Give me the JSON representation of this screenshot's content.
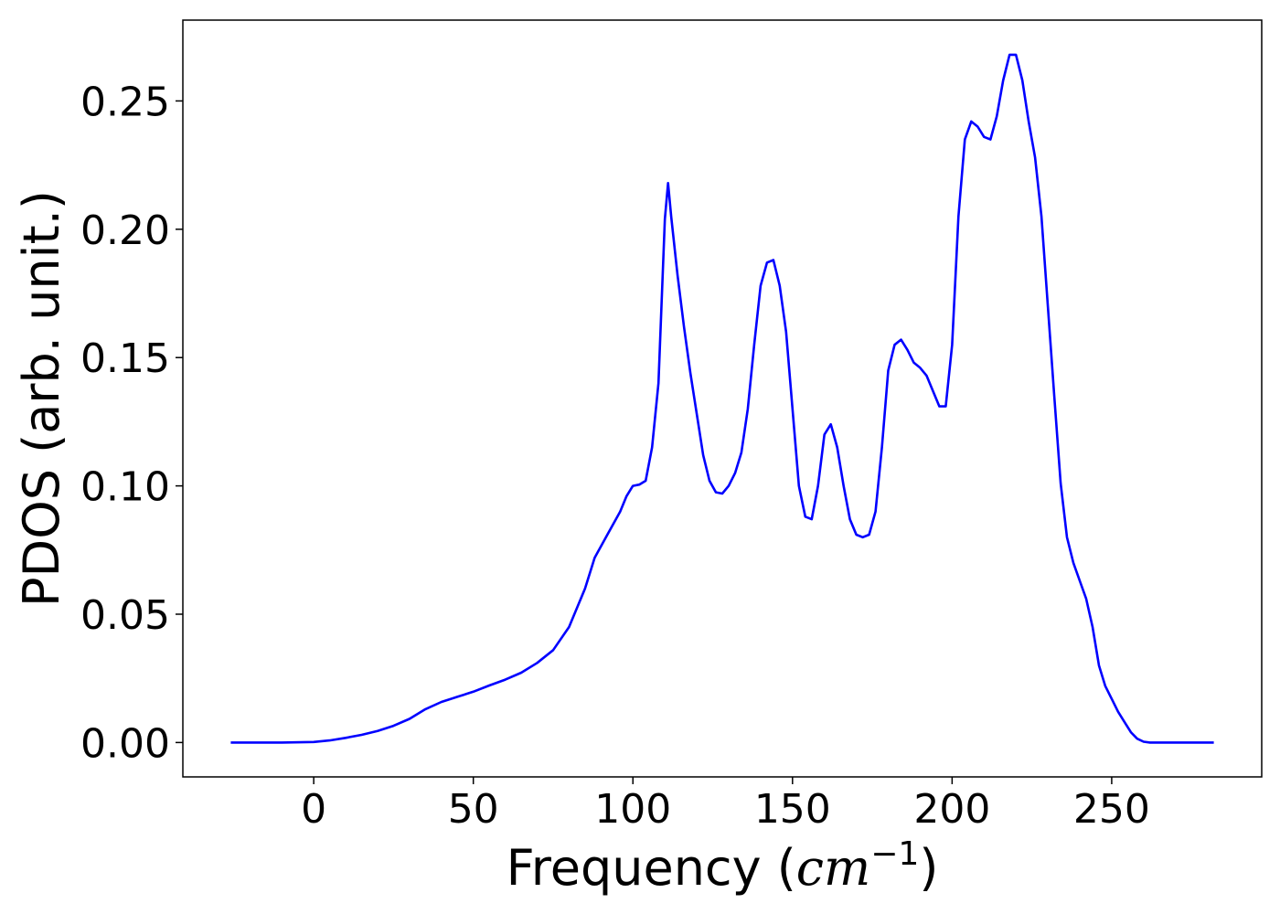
{
  "chart_data": {
    "type": "line",
    "title": "",
    "xlabel": "Frequency",
    "xlabel_unit_base": "cm",
    "xlabel_unit_exp": "−1",
    "ylabel": "PDOS (arb. unit.)",
    "xlim": [
      -41,
      297
    ],
    "ylim": [
      -0.0134,
      0.2815
    ],
    "xticks": [
      0,
      50,
      100,
      150,
      200,
      250
    ],
    "xtick_labels": [
      "0",
      "50",
      "100",
      "150",
      "200",
      "250"
    ],
    "yticks": [
      0.0,
      0.05,
      0.1,
      0.15,
      0.2,
      0.25
    ],
    "ytick_labels": [
      "0.00",
      "0.05",
      "0.10",
      "0.15",
      "0.20",
      "0.25"
    ],
    "grid": false,
    "series": [
      {
        "color": "#0000ff",
        "x": [
          -26,
          -10,
          0,
          5,
          10,
          15,
          20,
          25,
          30,
          35,
          40,
          45,
          50,
          55,
          60,
          65,
          70,
          75,
          80,
          85,
          88,
          92,
          96,
          98,
          100,
          102,
          104,
          106,
          108,
          110,
          111,
          112,
          114,
          116,
          118,
          120,
          122,
          124,
          126,
          128,
          130,
          132,
          134,
          136,
          138,
          140,
          142,
          144,
          146,
          148,
          150,
          152,
          154,
          156,
          158,
          160,
          162,
          164,
          166,
          168,
          170,
          172,
          174,
          176,
          178,
          180,
          182,
          184,
          186,
          188,
          190,
          192,
          194,
          196,
          198,
          200,
          202,
          204,
          206,
          208,
          210,
          212,
          214,
          216,
          218,
          220,
          222,
          224,
          226,
          228,
          230,
          232,
          234,
          236,
          238,
          240,
          242,
          244,
          246,
          248,
          250,
          252,
          254,
          256,
          258,
          260,
          262,
          270,
          282
        ],
        "y": [
          0,
          0,
          0.0002,
          0.0008,
          0.0018,
          0.003,
          0.0045,
          0.0065,
          0.0092,
          0.013,
          0.0158,
          0.0178,
          0.0198,
          0.0222,
          0.0245,
          0.0272,
          0.031,
          0.036,
          0.045,
          0.06,
          0.072,
          0.081,
          0.09,
          0.096,
          0.1,
          0.1005,
          0.102,
          0.115,
          0.14,
          0.204,
          0.218,
          0.205,
          0.182,
          0.162,
          0.144,
          0.128,
          0.112,
          0.102,
          0.0975,
          0.097,
          0.1,
          0.105,
          0.113,
          0.13,
          0.155,
          0.178,
          0.187,
          0.188,
          0.178,
          0.16,
          0.13,
          0.1,
          0.088,
          0.087,
          0.1,
          0.12,
          0.124,
          0.115,
          0.1,
          0.087,
          0.081,
          0.08,
          0.081,
          0.09,
          0.115,
          0.145,
          0.155,
          0.157,
          0.153,
          0.148,
          0.146,
          0.143,
          0.137,
          0.131,
          0.131,
          0.155,
          0.205,
          0.235,
          0.242,
          0.24,
          0.236,
          0.235,
          0.244,
          0.258,
          0.268,
          0.268,
          0.258,
          0.242,
          0.228,
          0.205,
          0.17,
          0.135,
          0.101,
          0.08,
          0.07,
          0.063,
          0.056,
          0.045,
          0.03,
          0.022,
          0.017,
          0.012,
          0.008,
          0.004,
          0.0015,
          0.0003,
          0,
          0,
          0
        ]
      }
    ]
  }
}
